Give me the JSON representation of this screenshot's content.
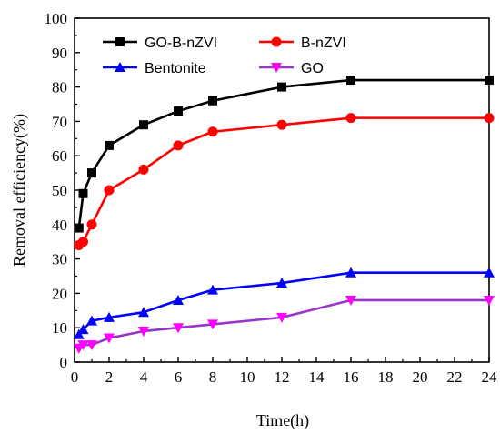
{
  "chart_data": {
    "type": "line",
    "xlabel": "Time(h)",
    "ylabel": "Removal efficiency(%)",
    "xlim": [
      0,
      24
    ],
    "ylim": [
      0,
      100
    ],
    "x_ticks": [
      0,
      2,
      4,
      6,
      8,
      10,
      12,
      14,
      16,
      18,
      20,
      22,
      24
    ],
    "y_ticks": [
      0,
      10,
      20,
      30,
      40,
      50,
      60,
      70,
      80,
      90,
      100
    ],
    "grid": false,
    "legend_position": "top",
    "series": [
      {
        "name": "GO-B-nZVI",
        "color": "#000000",
        "marker": "square",
        "x": [
          0.25,
          0.5,
          1,
          2,
          4,
          6,
          8,
          12,
          16,
          24
        ],
        "y": [
          39,
          49,
          55,
          63,
          69,
          73,
          76,
          80,
          82,
          82
        ]
      },
      {
        "name": "B-nZVI",
        "color": "#ff0000",
        "marker": "circle",
        "x": [
          0.25,
          0.5,
          1,
          2,
          4,
          6,
          8,
          12,
          16,
          24
        ],
        "y": [
          34,
          35,
          40,
          50,
          56,
          63,
          67,
          69,
          71,
          71
        ]
      },
      {
        "name": "Bentonite",
        "color": "#0000ff",
        "marker": "triangle-up",
        "x": [
          0.25,
          0.5,
          1,
          2,
          4,
          6,
          8,
          12,
          16,
          24
        ],
        "y": [
          8,
          9.5,
          12,
          13,
          14.5,
          18,
          21,
          23,
          26,
          26
        ]
      },
      {
        "name": "GO",
        "color": "#ff00ff",
        "line_color": "#9933cc",
        "marker": "triangle-down",
        "x": [
          0.25,
          0.5,
          1,
          2,
          4,
          6,
          8,
          12,
          16,
          24
        ],
        "y": [
          4,
          5,
          5,
          7,
          9,
          10,
          11,
          13,
          18,
          18
        ]
      }
    ]
  }
}
